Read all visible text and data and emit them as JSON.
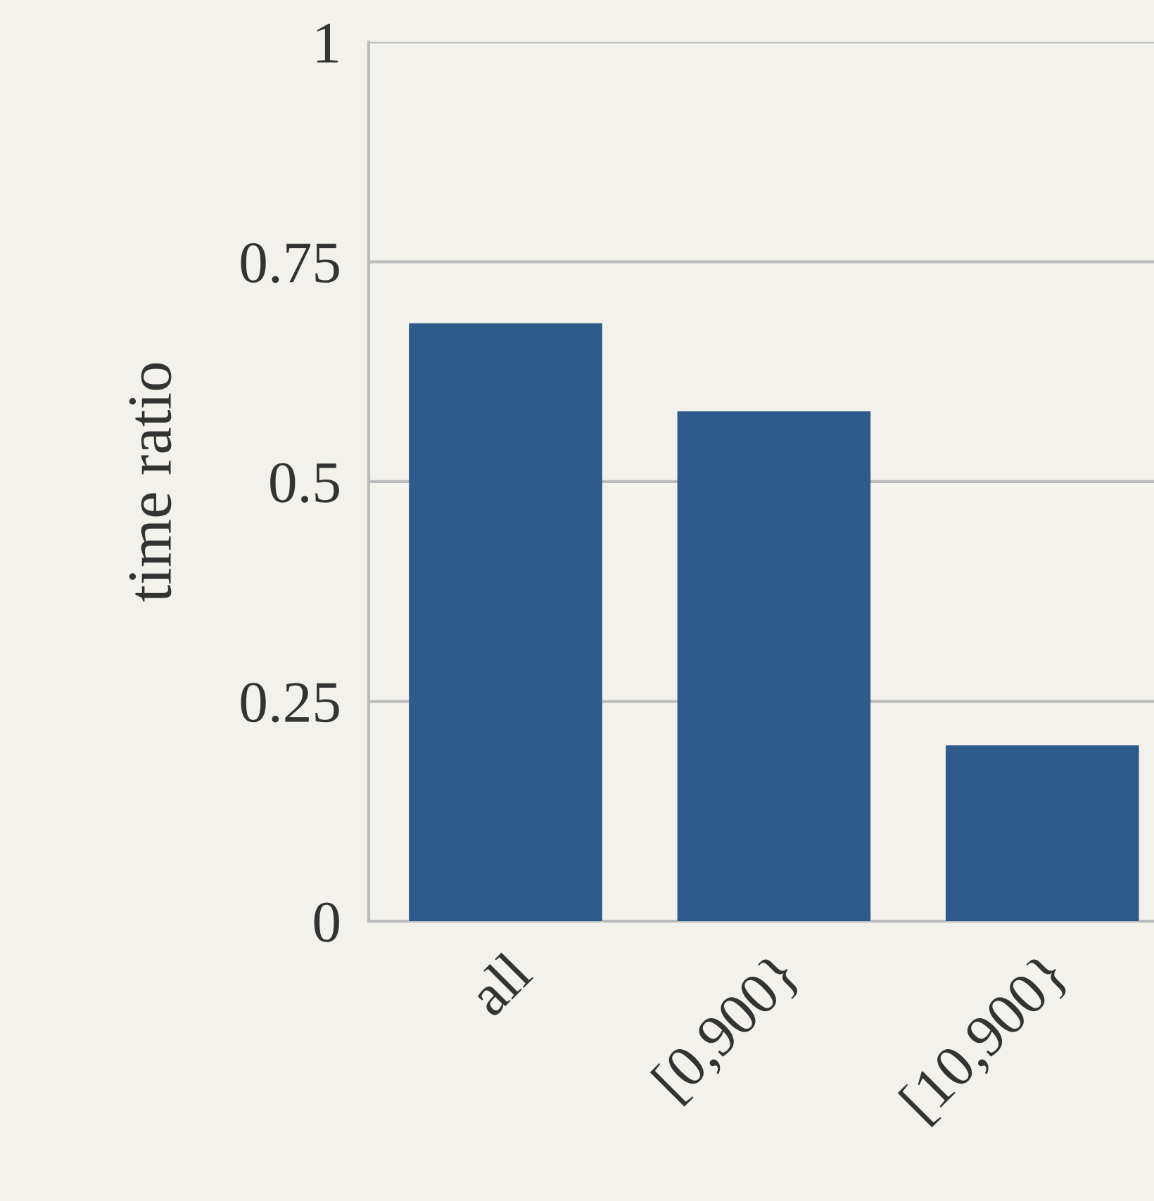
{
  "chart_data": {
    "type": "bar",
    "ylabel": "time ratio",
    "categories": [
      "all",
      "[0,900}",
      "[10,900}"
    ],
    "values": [
      0.68,
      0.58,
      0.2
    ],
    "color": "#2e5a8c",
    "ylim": [
      0,
      1
    ],
    "yticks": [
      0,
      0.25,
      0.5,
      0.75,
      1
    ],
    "grid": "y"
  }
}
